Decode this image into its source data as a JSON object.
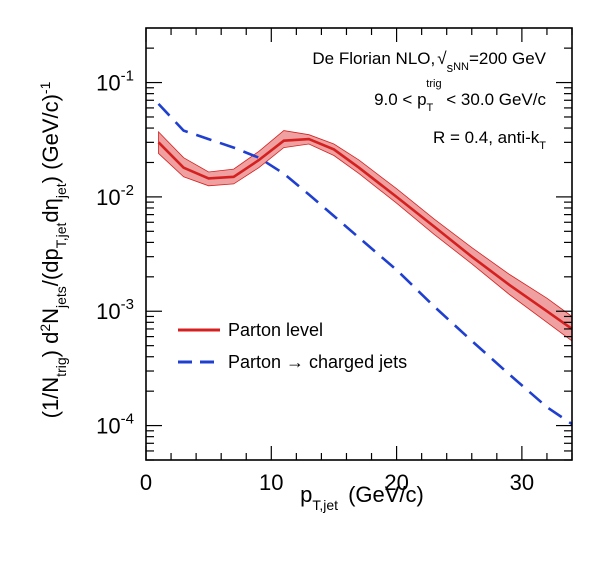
{
  "chart_data": {
    "type": "line",
    "xlabel": "p_{T,jet}  (GeV/c)",
    "ylabel": "(1/N_{trig}) d²N_{jets}/(dp_{T,jet}dη_{jet})  (GeV/c)⁻¹",
    "x_range": [
      0,
      34
    ],
    "y_range": [
      5e-05,
      0.3
    ],
    "y_scale": "log",
    "x_ticks": [
      {
        "value": 0,
        "label": "0"
      },
      {
        "value": 10,
        "label": "10"
      },
      {
        "value": 20,
        "label": "20"
      },
      {
        "value": 30,
        "label": "30"
      }
    ],
    "y_ticks": [
      {
        "value": 0.0001,
        "base": "10",
        "exp": "-4"
      },
      {
        "value": 0.001,
        "base": "10",
        "exp": "-3"
      },
      {
        "value": 0.01,
        "base": "10",
        "exp": "-2"
      },
      {
        "value": 0.1,
        "base": "10",
        "exp": "-1"
      }
    ],
    "annotations": {
      "line1": "De Florian NLO, √s_NN=200 GeV",
      "line2": "9.0 < p_T^trig < 30.0 GeV/c",
      "line3": "R = 0.4, anti-k_T"
    },
    "series": [
      {
        "name": "Parton level",
        "color": "#d62020",
        "style": "solid",
        "band_color": "#e98080",
        "x": [
          1,
          3,
          5,
          7,
          9,
          11,
          13,
          15,
          17,
          20,
          23,
          26,
          29,
          32,
          34
        ],
        "y": [
          0.03,
          0.018,
          0.0145,
          0.015,
          0.021,
          0.031,
          0.032,
          0.026,
          0.018,
          0.01,
          0.0055,
          0.003,
          0.0017,
          0.001,
          0.0007
        ],
        "y_low": [
          0.024,
          0.015,
          0.0125,
          0.013,
          0.018,
          0.027,
          0.029,
          0.023,
          0.016,
          0.0088,
          0.0047,
          0.0026,
          0.0014,
          0.0008,
          0.00055
        ],
        "y_high": [
          0.037,
          0.022,
          0.0165,
          0.0175,
          0.025,
          0.038,
          0.035,
          0.029,
          0.021,
          0.0118,
          0.0064,
          0.0036,
          0.0021,
          0.0013,
          0.0009
        ]
      },
      {
        "name": "Parton → charged jets",
        "color": "#1f3fd0",
        "style": "dashed",
        "x": [
          1,
          3,
          5,
          7,
          9,
          11,
          13,
          15,
          17,
          20,
          23,
          26,
          29,
          32,
          34
        ],
        "y": [
          0.065,
          0.038,
          0.032,
          0.027,
          0.022,
          0.016,
          0.0105,
          0.0068,
          0.0044,
          0.0023,
          0.0011,
          0.00055,
          0.00028,
          0.000145,
          0.000103
        ]
      }
    ],
    "legend": {
      "placement": "bottom-left",
      "entries": [
        {
          "label": "Parton level"
        },
        {
          "label": "Parton → charged jets"
        }
      ]
    }
  }
}
